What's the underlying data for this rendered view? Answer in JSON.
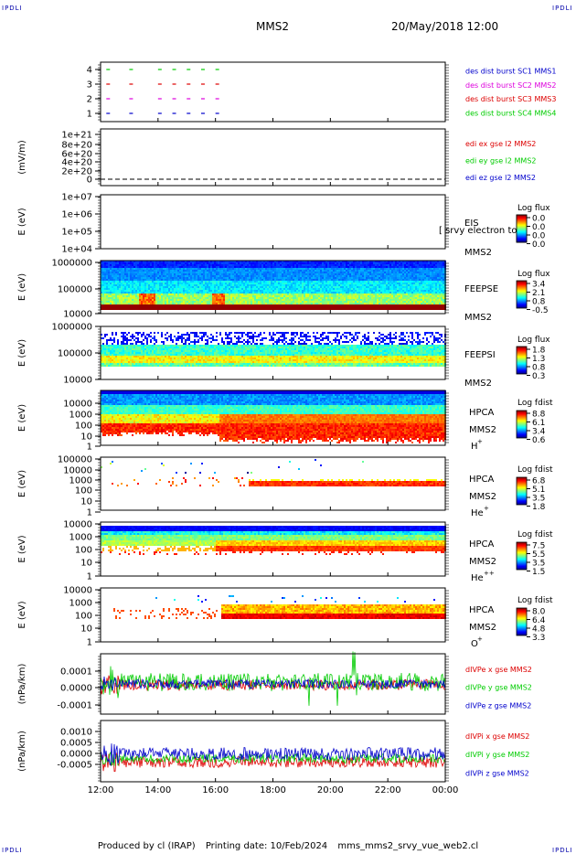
{
  "header": {
    "corner_label": "IPDLI",
    "spacecraft": "MMS2",
    "datetime": "20/May/2018 12:00"
  },
  "footer": {
    "produced_by": "Produced by cl (IRAP)",
    "printing_date": "Printing date: 10/Feb/2024",
    "filename": "mms_mms2_srvy_vue_web2.cl"
  },
  "colors": {
    "red": "#dd0000",
    "green": "#00cc00",
    "blue": "#0000cc",
    "magenta": "#dd00dd",
    "black": "#000000"
  },
  "chart_data": {
    "type": "multi-panel time series",
    "x": {
      "ticks": [
        "12:00",
        "14:00",
        "16:00",
        "18:00",
        "20:00",
        "22:00",
        "00:00"
      ],
      "range_hours": [
        12,
        24
      ]
    },
    "panels": [
      {
        "id": "burst",
        "type": "line",
        "yticks": [
          "4",
          "3",
          "2",
          "1"
        ],
        "legend": [
          {
            "text": "des dist burst SC1 MMS1",
            "color": "#0000cc"
          },
          {
            "text": "des dist burst SC2 MMS2",
            "color": "#dd00dd"
          },
          {
            "text": "des dist burst SC3 MMS3",
            "color": "#dd0000"
          },
          {
            "text": "des dist burst SC4 MMS4",
            "color": "#00cc00"
          }
        ],
        "series": [
          {
            "level": 4,
            "color": "#00cc00",
            "segments": [
              [
                12.2,
                12.35
              ],
              [
                13.0,
                13.15
              ],
              [
                14.0,
                14.2
              ],
              [
                14.5,
                14.7
              ],
              [
                15.0,
                15.3
              ],
              [
                15.5,
                16.0
              ],
              [
                16.0,
                16.3
              ]
            ]
          },
          {
            "level": 3,
            "color": "#dd0000",
            "segments": [
              [
                12.2,
                12.35
              ],
              [
                13.0,
                13.15
              ],
              [
                14.0,
                14.2
              ],
              [
                14.5,
                14.7
              ],
              [
                15.0,
                15.3
              ],
              [
                15.5,
                16.0
              ],
              [
                16.0,
                16.3
              ]
            ]
          },
          {
            "level": 2,
            "color": "#dd00dd",
            "segments": [
              [
                12.2,
                12.35
              ],
              [
                13.0,
                13.15
              ],
              [
                14.0,
                14.2
              ],
              [
                14.5,
                14.7
              ],
              [
                15.0,
                15.3
              ],
              [
                15.5,
                16.0
              ],
              [
                16.0,
                16.3
              ]
            ]
          },
          {
            "level": 1,
            "color": "#0000cc",
            "segments": [
              [
                12.2,
                12.35
              ],
              [
                13.0,
                13.15
              ],
              [
                14.0,
                14.2
              ],
              [
                14.5,
                14.7
              ],
              [
                15.0,
                15.3
              ],
              [
                15.5,
                16.0
              ],
              [
                16.0,
                16.3
              ]
            ]
          }
        ]
      },
      {
        "id": "edi",
        "type": "line",
        "ylabel": "(mV/m)",
        "yticks": [
          "1e+21",
          "8e+20",
          "6e+20",
          "4e+20",
          "2e+20",
          "0"
        ],
        "legend": [
          {
            "text": "edi ex gse l2 MMS2",
            "color": "#dd0000"
          },
          {
            "text": "edi ey gse l2 MMS2",
            "color": "#00cc00"
          },
          {
            "text": "edi ez gse l2 MMS2",
            "color": "#0000cc"
          }
        ]
      },
      {
        "id": "eis",
        "type": "heatmap",
        "ylabel": "E (eV)",
        "yticks": [
          "1e+07",
          "1e+06",
          "1e+05",
          "1e+04"
        ],
        "instrument": "EIS",
        "sc": "MMS2",
        "overlay_text": "[ srvy electron to",
        "cbar": {
          "title": "Log flux",
          "ticks": [
            "0.0",
            "0.0",
            "0.0",
            "0.0"
          ]
        }
      },
      {
        "id": "feepse",
        "type": "heatmap",
        "ylabel": "E (eV)",
        "yticks": [
          "1000000",
          "100000",
          "10000"
        ],
        "instrument": "FEEPSE",
        "sc": "MMS2",
        "cbar": {
          "title": "Log flux",
          "ticks": [
            "3.4",
            "2.1",
            "0.8",
            "-0.5"
          ]
        }
      },
      {
        "id": "feepsi",
        "type": "heatmap",
        "ylabel": "E (eV)",
        "yticks": [
          "1000000",
          "100000",
          "10000"
        ],
        "instrument": "FEEPSI",
        "sc": "MMS2",
        "cbar": {
          "title": "Log flux",
          "ticks": [
            "1.8",
            "1.3",
            "0.8",
            "0.3"
          ]
        }
      },
      {
        "id": "hpca_h",
        "type": "heatmap",
        "ylabel": "E (eV)",
        "yticks": [
          "10000",
          "1000",
          "100",
          "10",
          "1"
        ],
        "instrument": "HPCA",
        "sc": "MMS2",
        "species": "H",
        "charge": "+",
        "cbar": {
          "title": "Log fdist",
          "ticks": [
            "8.8",
            "6.1",
            "3.4",
            "0.6"
          ]
        }
      },
      {
        "id": "hpca_he1",
        "type": "heatmap",
        "ylabel": "E (eV)",
        "yticks": [
          "100000",
          "10000",
          "1000",
          "100",
          "10",
          "1"
        ],
        "instrument": "HPCA",
        "sc": "MMS2",
        "species": "He",
        "charge": "+",
        "cbar": {
          "title": "Log fdist",
          "ticks": [
            "6.8",
            "5.1",
            "3.5",
            "1.8"
          ]
        }
      },
      {
        "id": "hpca_he2",
        "type": "heatmap",
        "ylabel": "E (eV)",
        "yticks": [
          "10000",
          "1000",
          "100",
          "10",
          "1"
        ],
        "instrument": "HPCA",
        "sc": "MMS2",
        "species": "He",
        "charge": "++",
        "cbar": {
          "title": "Log fdist",
          "ticks": [
            "7.5",
            "5.5",
            "3.5",
            "1.5"
          ]
        }
      },
      {
        "id": "hpca_o",
        "type": "heatmap",
        "ylabel": "E (eV)",
        "yticks": [
          "10000",
          "1000",
          "100",
          "10",
          "1"
        ],
        "instrument": "HPCA",
        "sc": "MMS2",
        "species": "O",
        "charge": "+",
        "cbar": {
          "title": "Log fdist",
          "ticks": [
            "8.0",
            "6.4",
            "4.8",
            "3.3"
          ]
        }
      },
      {
        "id": "divpe",
        "type": "line",
        "ylabel": "(nPa/km)",
        "yticks": [
          "0.0001",
          "0.0000",
          "-0.0001"
        ],
        "ylim": [
          -0.00012,
          0.00012
        ],
        "legend": [
          {
            "text": "dIVPe x gse MMS2",
            "color": "#dd0000"
          },
          {
            "text": "dIVPe y gse MMS2",
            "color": "#00cc00"
          },
          {
            "text": "dIVPe z gse MMS2",
            "color": "#0000cc"
          }
        ]
      },
      {
        "id": "divpi",
        "type": "line",
        "ylabel": "(nPa/km)",
        "yticks": [
          "0.0010",
          "0.0005",
          "0.0000",
          "-0.0005"
        ],
        "ylim": [
          -0.0008,
          0.0013
        ],
        "legend": [
          {
            "text": "dIVPi x gse MMS2",
            "color": "#dd0000"
          },
          {
            "text": "dIVPi y gse MMS2",
            "color": "#00cc00"
          },
          {
            "text": "dIVPi z gse MMS2",
            "color": "#0000cc"
          }
        ]
      }
    ]
  }
}
